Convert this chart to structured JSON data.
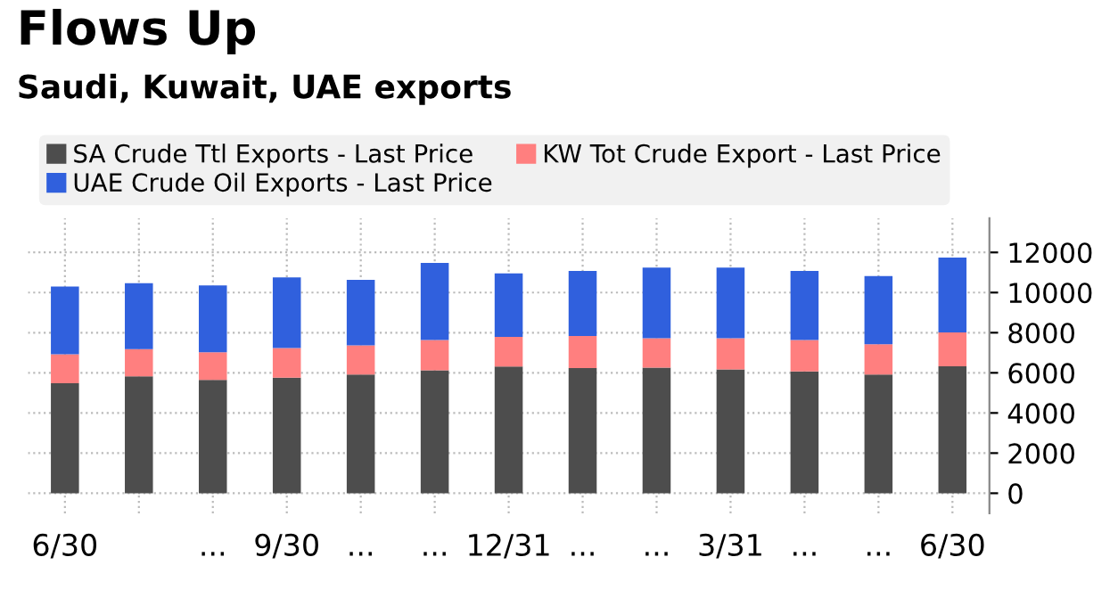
{
  "chart_data": {
    "type": "bar",
    "title": "Flows Up",
    "subtitle": "Saudi, Kuwait, UAE exports",
    "categories": [
      "6/30",
      null,
      "...",
      "9/30",
      "...",
      "...",
      "12/31",
      "...",
      "...",
      "3/31",
      "...",
      "...",
      "6/30"
    ],
    "stacked": true,
    "series": [
      {
        "name": "SA Crude Ttl Exports - Last Price",
        "color": "#4d4d4d",
        "values": [
          5480,
          5830,
          5650,
          5760,
          5910,
          6130,
          6310,
          6240,
          6260,
          6170,
          6070,
          5910,
          6330
        ]
      },
      {
        "name": "KW Tot Crude Export - Last Price",
        "color": "#ff7f7f",
        "values": [
          1440,
          1350,
          1380,
          1480,
          1460,
          1510,
          1480,
          1590,
          1460,
          1550,
          1570,
          1510,
          1680
        ]
      },
      {
        "name": "UAE Crude Oil Exports - Last Price",
        "color": "#3060dd",
        "values": [
          3380,
          3290,
          3330,
          3520,
          3260,
          3840,
          3160,
          3250,
          3520,
          3520,
          3440,
          3400,
          3730
        ]
      }
    ],
    "ylim": [
      -1000,
      13700
    ],
    "yticks": [
      0,
      2000,
      4000,
      6000,
      8000,
      10000,
      12000
    ],
    "grid": true,
    "legend": "top"
  }
}
